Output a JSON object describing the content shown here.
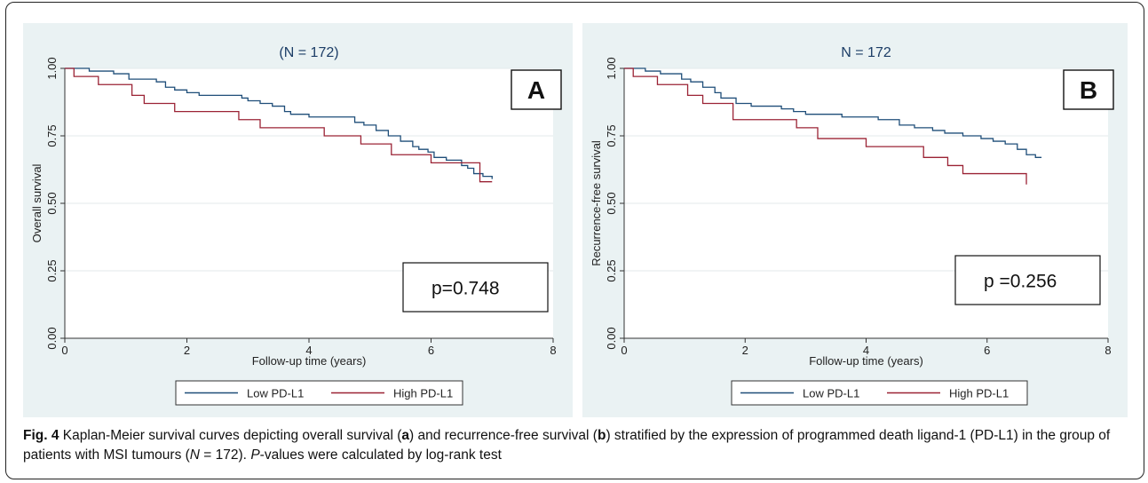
{
  "chart_data": [
    {
      "type": "line",
      "title": "(N = 172)",
      "panel_label": "A",
      "xlabel": "Follow-up time (years)",
      "ylabel": "Overall survival",
      "xlim": [
        0,
        8
      ],
      "ylim": [
        0,
        1
      ],
      "x_ticks": [
        "0",
        "2",
        "4",
        "6",
        "8"
      ],
      "y_ticks": [
        "0.00",
        "0.25",
        "0.50",
        "0.75",
        "1.00"
      ],
      "grid": true,
      "legend_position": "bottom",
      "annotation": "p=0.748",
      "series": [
        {
          "name": "Low PD-L1",
          "color": "#1f4e79",
          "points": [
            [
              0,
              1.0
            ],
            [
              0.4,
              0.99
            ],
            [
              0.8,
              0.98
            ],
            [
              1.05,
              0.96
            ],
            [
              1.5,
              0.95
            ],
            [
              1.65,
              0.93
            ],
            [
              1.8,
              0.92
            ],
            [
              2.0,
              0.91
            ],
            [
              2.2,
              0.9
            ],
            [
              2.9,
              0.89
            ],
            [
              3.0,
              0.88
            ],
            [
              3.2,
              0.87
            ],
            [
              3.4,
              0.86
            ],
            [
              3.6,
              0.84
            ],
            [
              3.7,
              0.83
            ],
            [
              4.0,
              0.82
            ],
            [
              4.6,
              0.82
            ],
            [
              4.75,
              0.8
            ],
            [
              4.9,
              0.79
            ],
            [
              5.1,
              0.77
            ],
            [
              5.3,
              0.75
            ],
            [
              5.5,
              0.73
            ],
            [
              5.7,
              0.71
            ],
            [
              5.8,
              0.7
            ],
            [
              5.95,
              0.69
            ],
            [
              6.05,
              0.67
            ],
            [
              6.25,
              0.66
            ],
            [
              6.5,
              0.64
            ],
            [
              6.6,
              0.63
            ],
            [
              6.7,
              0.61
            ],
            [
              6.85,
              0.6
            ],
            [
              7.0,
              0.59
            ]
          ]
        },
        {
          "name": "High PD-L1",
          "color": "#9b2335",
          "points": [
            [
              0,
              1.0
            ],
            [
              0.15,
              0.97
            ],
            [
              0.55,
              0.94
            ],
            [
              1.1,
              0.9
            ],
            [
              1.3,
              0.87
            ],
            [
              1.8,
              0.84
            ],
            [
              2.85,
              0.81
            ],
            [
              3.2,
              0.78
            ],
            [
              4.25,
              0.75
            ],
            [
              4.85,
              0.72
            ],
            [
              5.35,
              0.68
            ],
            [
              6.0,
              0.65
            ],
            [
              6.8,
              0.58
            ],
            [
              7.0,
              0.58
            ]
          ]
        }
      ]
    },
    {
      "type": "line",
      "title": "N = 172",
      "panel_label": "B",
      "xlabel": "Follow-up time (years)",
      "ylabel": "Recurrence-free survival",
      "xlim": [
        0,
        8
      ],
      "ylim": [
        0,
        1
      ],
      "x_ticks": [
        "0",
        "2",
        "4",
        "6",
        "8"
      ],
      "y_ticks": [
        "0.00",
        "0.25",
        "0.50",
        "0.75",
        "1.00"
      ],
      "grid": true,
      "legend_position": "bottom",
      "annotation": "p =0.256",
      "series": [
        {
          "name": "Low PD-L1",
          "color": "#1f4e79",
          "points": [
            [
              0,
              1.0
            ],
            [
              0.35,
              0.99
            ],
            [
              0.6,
              0.98
            ],
            [
              0.95,
              0.96
            ],
            [
              1.1,
              0.95
            ],
            [
              1.3,
              0.93
            ],
            [
              1.5,
              0.91
            ],
            [
              1.6,
              0.89
            ],
            [
              1.85,
              0.87
            ],
            [
              2.1,
              0.86
            ],
            [
              2.6,
              0.85
            ],
            [
              2.8,
              0.84
            ],
            [
              3.0,
              0.83
            ],
            [
              3.6,
              0.82
            ],
            [
              4.2,
              0.81
            ],
            [
              4.55,
              0.79
            ],
            [
              4.8,
              0.78
            ],
            [
              5.1,
              0.77
            ],
            [
              5.3,
              0.76
            ],
            [
              5.6,
              0.75
            ],
            [
              5.9,
              0.74
            ],
            [
              6.1,
              0.73
            ],
            [
              6.3,
              0.72
            ],
            [
              6.5,
              0.7
            ],
            [
              6.65,
              0.68
            ],
            [
              6.8,
              0.67
            ],
            [
              6.9,
              0.67
            ]
          ]
        },
        {
          "name": "High PD-L1",
          "color": "#9b2335",
          "points": [
            [
              0,
              1.0
            ],
            [
              0.15,
              0.97
            ],
            [
              0.55,
              0.94
            ],
            [
              1.05,
              0.9
            ],
            [
              1.3,
              0.87
            ],
            [
              1.8,
              0.81
            ],
            [
              2.85,
              0.78
            ],
            [
              3.2,
              0.74
            ],
            [
              4.0,
              0.71
            ],
            [
              4.95,
              0.67
            ],
            [
              5.35,
              0.64
            ],
            [
              5.6,
              0.61
            ],
            [
              6.65,
              0.57
            ]
          ]
        }
      ]
    }
  ],
  "caption": {
    "fig_label": "Fig. 4",
    "seg1": " Kaplan-Meier survival curves depicting overall survival (",
    "a": "a",
    "seg2": ") and recurrence-free survival (",
    "b": "b",
    "seg3": ") stratified by the expression of programmed death ligand-1 (PD-L1) in the group of patients with MSI tumours (",
    "n_italic": "N",
    "seg4": " = 172). ",
    "p_italic": "P",
    "seg5": "-values were calculated by log-rank test"
  }
}
